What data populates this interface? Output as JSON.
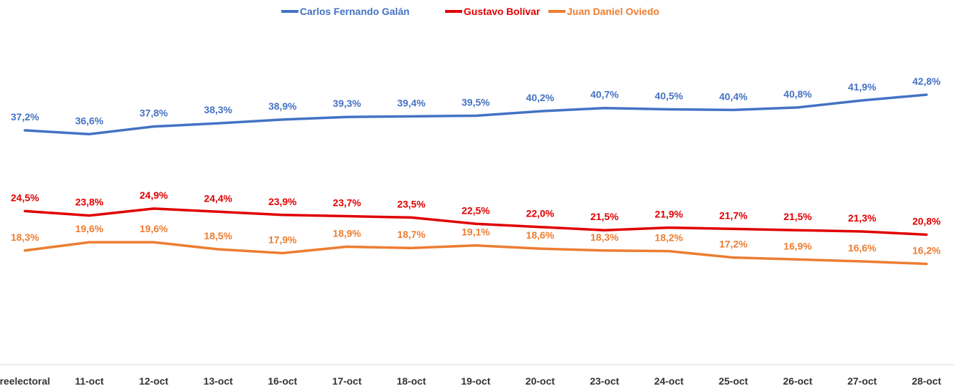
{
  "chart_data": {
    "type": "line",
    "title": "",
    "xlabel": "",
    "ylabel": "",
    "legend_position": "top",
    "grid": false,
    "categories": [
      "reelectoral",
      "11-oct",
      "12-oct",
      "13-oct",
      "16-oct",
      "17-oct",
      "18-oct",
      "19-oct",
      "20-oct",
      "23-oct",
      "24-oct",
      "25-oct",
      "26-oct",
      "27-oct",
      "28-oct"
    ],
    "series": [
      {
        "name": "Carlos Fernando Galán",
        "color": "#4472c4",
        "values": [
          37.2,
          36.6,
          37.8,
          38.3,
          38.9,
          39.3,
          39.4,
          39.5,
          40.2,
          40.7,
          40.5,
          40.4,
          40.8,
          41.9,
          42.8
        ],
        "labels": [
          "37,2%",
          "36,6%",
          "37,8%",
          "38,3%",
          "38,9%",
          "39,3%",
          "39,4%",
          "39,5%",
          "40,2%",
          "40,7%",
          "40,5%",
          "40,4%",
          "40,8%",
          "41,9%",
          "42,8%"
        ]
      },
      {
        "name": "Gustavo Bolívar",
        "color": "#e00000",
        "values": [
          24.5,
          23.8,
          24.9,
          24.4,
          23.9,
          23.7,
          23.5,
          22.5,
          22.0,
          21.5,
          21.9,
          21.7,
          21.5,
          21.3,
          20.8
        ],
        "labels": [
          "24,5%",
          "23,8%",
          "24,9%",
          "24,4%",
          "23,9%",
          "23,7%",
          "23,5%",
          "22,5%",
          "22,0%",
          "21,5%",
          "21,9%",
          "21,7%",
          "21,5%",
          "21,3%",
          "20,8%"
        ]
      },
      {
        "name": "Juan Daniel Oviedo",
        "color": "#ed7d31",
        "values": [
          18.3,
          19.6,
          19.6,
          18.5,
          17.9,
          18.9,
          18.7,
          19.1,
          18.6,
          18.3,
          18.2,
          17.2,
          16.9,
          16.6,
          16.2
        ],
        "labels": [
          "18,3%",
          "19,6%",
          "19,6%",
          "18,5%",
          "17,9%",
          "18,9%",
          "18,7%",
          "19,1%",
          "18,6%",
          "18,3%",
          "18,2%",
          "17,2%",
          "16,9%",
          "16,6%",
          "16,2%"
        ]
      }
    ]
  }
}
